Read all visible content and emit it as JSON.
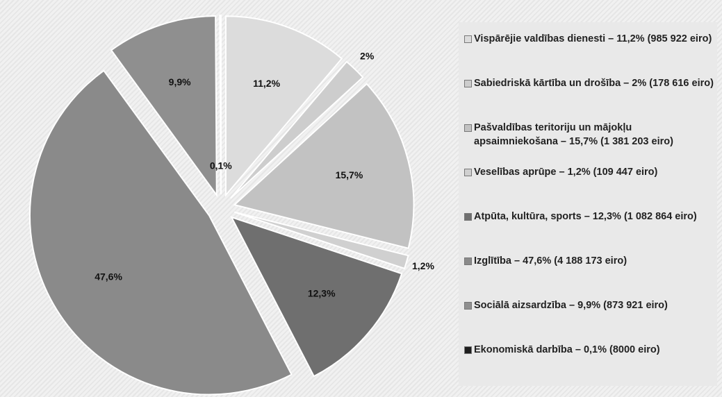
{
  "chart_data": {
    "type": "pie",
    "categories": [
      "Vispārējie valdības dienesti – 11,2% (985 922 eiro)",
      "Sabiedriskā kārtība un drošība – 2% (178 616 eiro)",
      "Pašvaldības teritoriju un mājokļu apsaimniekošana – 15,7% (1 381 203 eiro)",
      "Veselības aprūpe – 1,2% (109 447 eiro)",
      "Atpūta, kultūra, sports – 12,3% (1 082 864 eiro)",
      "Izglītība – 47,6% (4 188 173 eiro)",
      "Sociālā aizsardzība – 9,9% (873 921 eiro)",
      "Ekonomiskā darbība – 0,1% (8000 eiro)"
    ],
    "values": [
      11.2,
      2,
      15.7,
      1.2,
      12.3,
      47.6,
      9.9,
      0.1
    ],
    "value_labels": [
      "11,2%",
      "2%",
      "15,7%",
      "1,2%",
      "12,3%",
      "47,6%",
      "9,9%",
      "0,1%"
    ],
    "colors": [
      "#dcdcdc",
      "#cdcdcd",
      "#c2c2c2",
      "#d0d0d0",
      "#6f6f6f",
      "#8a8a8a",
      "#8f8f8f",
      "#1e1e1e"
    ]
  }
}
